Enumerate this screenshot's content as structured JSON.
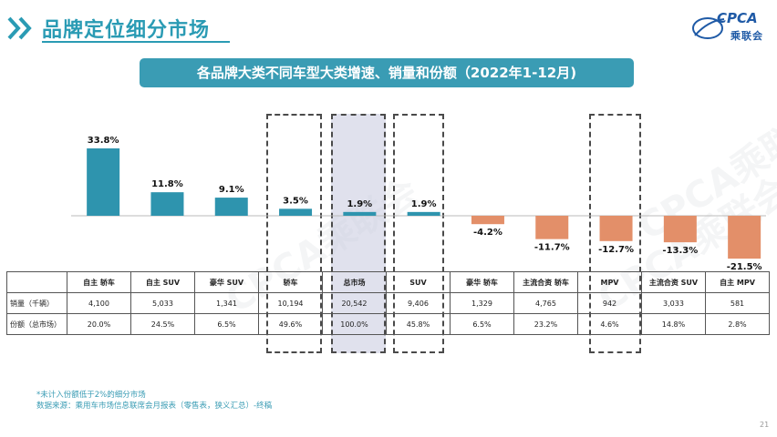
{
  "header": {
    "title": "品牌定位细分市场",
    "logo_text": "CPCA",
    "logo_cn": "乘联会",
    "accent": "#2a9bb4"
  },
  "banner": {
    "text": "各品牌大类不同车型大类增速、销量和份额（2022年1-12月)"
  },
  "chart_data": {
    "type": "bar",
    "categories": [
      "自主 轿车",
      "自主 SUV",
      "豪华 SUV",
      "轿车",
      "总市场",
      "SUV",
      "豪华 轿车",
      "主流合资 轿车",
      "MPV",
      "主流合资 SUV",
      "自主 MPV"
    ],
    "values": [
      33.8,
      11.8,
      9.1,
      3.5,
      1.9,
      1.9,
      -4.2,
      -11.7,
      -12.7,
      -13.3,
      -21.5
    ],
    "value_labels": [
      "33.8%",
      "11.8%",
      "9.1%",
      "3.5%",
      "1.9%",
      "1.9%",
      "-4.2%",
      "-11.7%",
      "-12.7%",
      "-13.3%",
      "-21.5%"
    ],
    "positive_color": "#2e94ae",
    "negative_color": "#e38f69",
    "highlighted_categories": [
      "轿车",
      "总市场",
      "SUV",
      "MPV"
    ],
    "filled_highlight": "总市场",
    "title": "",
    "xlabel": "",
    "ylabel": ""
  },
  "table": {
    "rows": [
      {
        "label": "销量（千辆）",
        "values": [
          "4,100",
          "5,033",
          "1,341",
          "10,194",
          "20,542",
          "9,406",
          "1,329",
          "4,765",
          "942",
          "3,033",
          "581"
        ]
      },
      {
        "label": "份额（总市场）",
        "values": [
          "20.0%",
          "24.5%",
          "6.5%",
          "49.6%",
          "100.0%",
          "45.8%",
          "6.5%",
          "23.2%",
          "4.6%",
          "14.8%",
          "2.8%"
        ]
      }
    ]
  },
  "footer": {
    "note": "*未计入份额低于2%的细分市场",
    "source": "数据来源：乘用车市场信息联席会月报表（零售表，狭义汇总）-终稿",
    "page_number": "21"
  },
  "watermark": {
    "text": "CPCA乘联会"
  }
}
